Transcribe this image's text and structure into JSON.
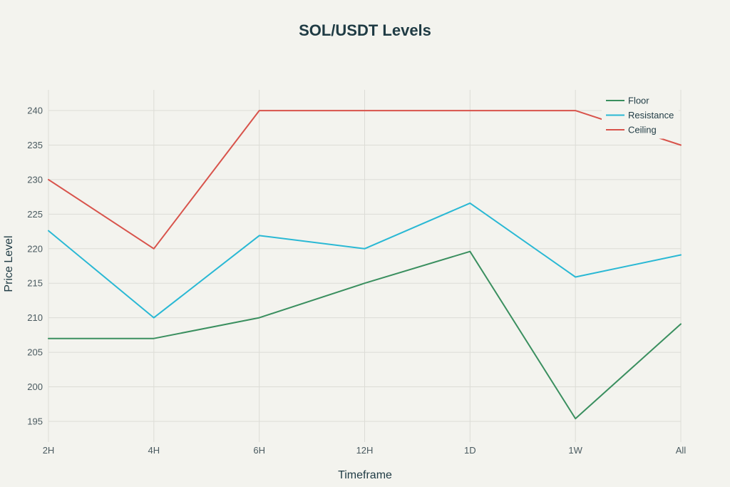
{
  "chart_data": {
    "type": "line",
    "title": "SOL/USDT Levels",
    "xlabel": "Timeframe",
    "ylabel": "Price Level",
    "categories": [
      "2H",
      "4H",
      "6H",
      "12H",
      "1D",
      "1W",
      "All"
    ],
    "ylim": [
      192,
      243
    ],
    "yticks": [
      195,
      200,
      205,
      210,
      215,
      220,
      225,
      230,
      235,
      240
    ],
    "grid": true,
    "legend_position": "top-right",
    "series": [
      {
        "name": "Floor",
        "color": "#3a8f5f",
        "values": [
          207,
          207,
          210,
          215,
          219.6,
          195.4,
          209.1
        ]
      },
      {
        "name": "Resistance",
        "color": "#29b8d4",
        "values": [
          222.6,
          210,
          221.9,
          220,
          226.6,
          215.9,
          219.1
        ]
      },
      {
        "name": "Ceiling",
        "color": "#d8534b",
        "values": [
          230,
          220,
          240,
          240,
          240,
          240,
          235
        ]
      }
    ]
  }
}
